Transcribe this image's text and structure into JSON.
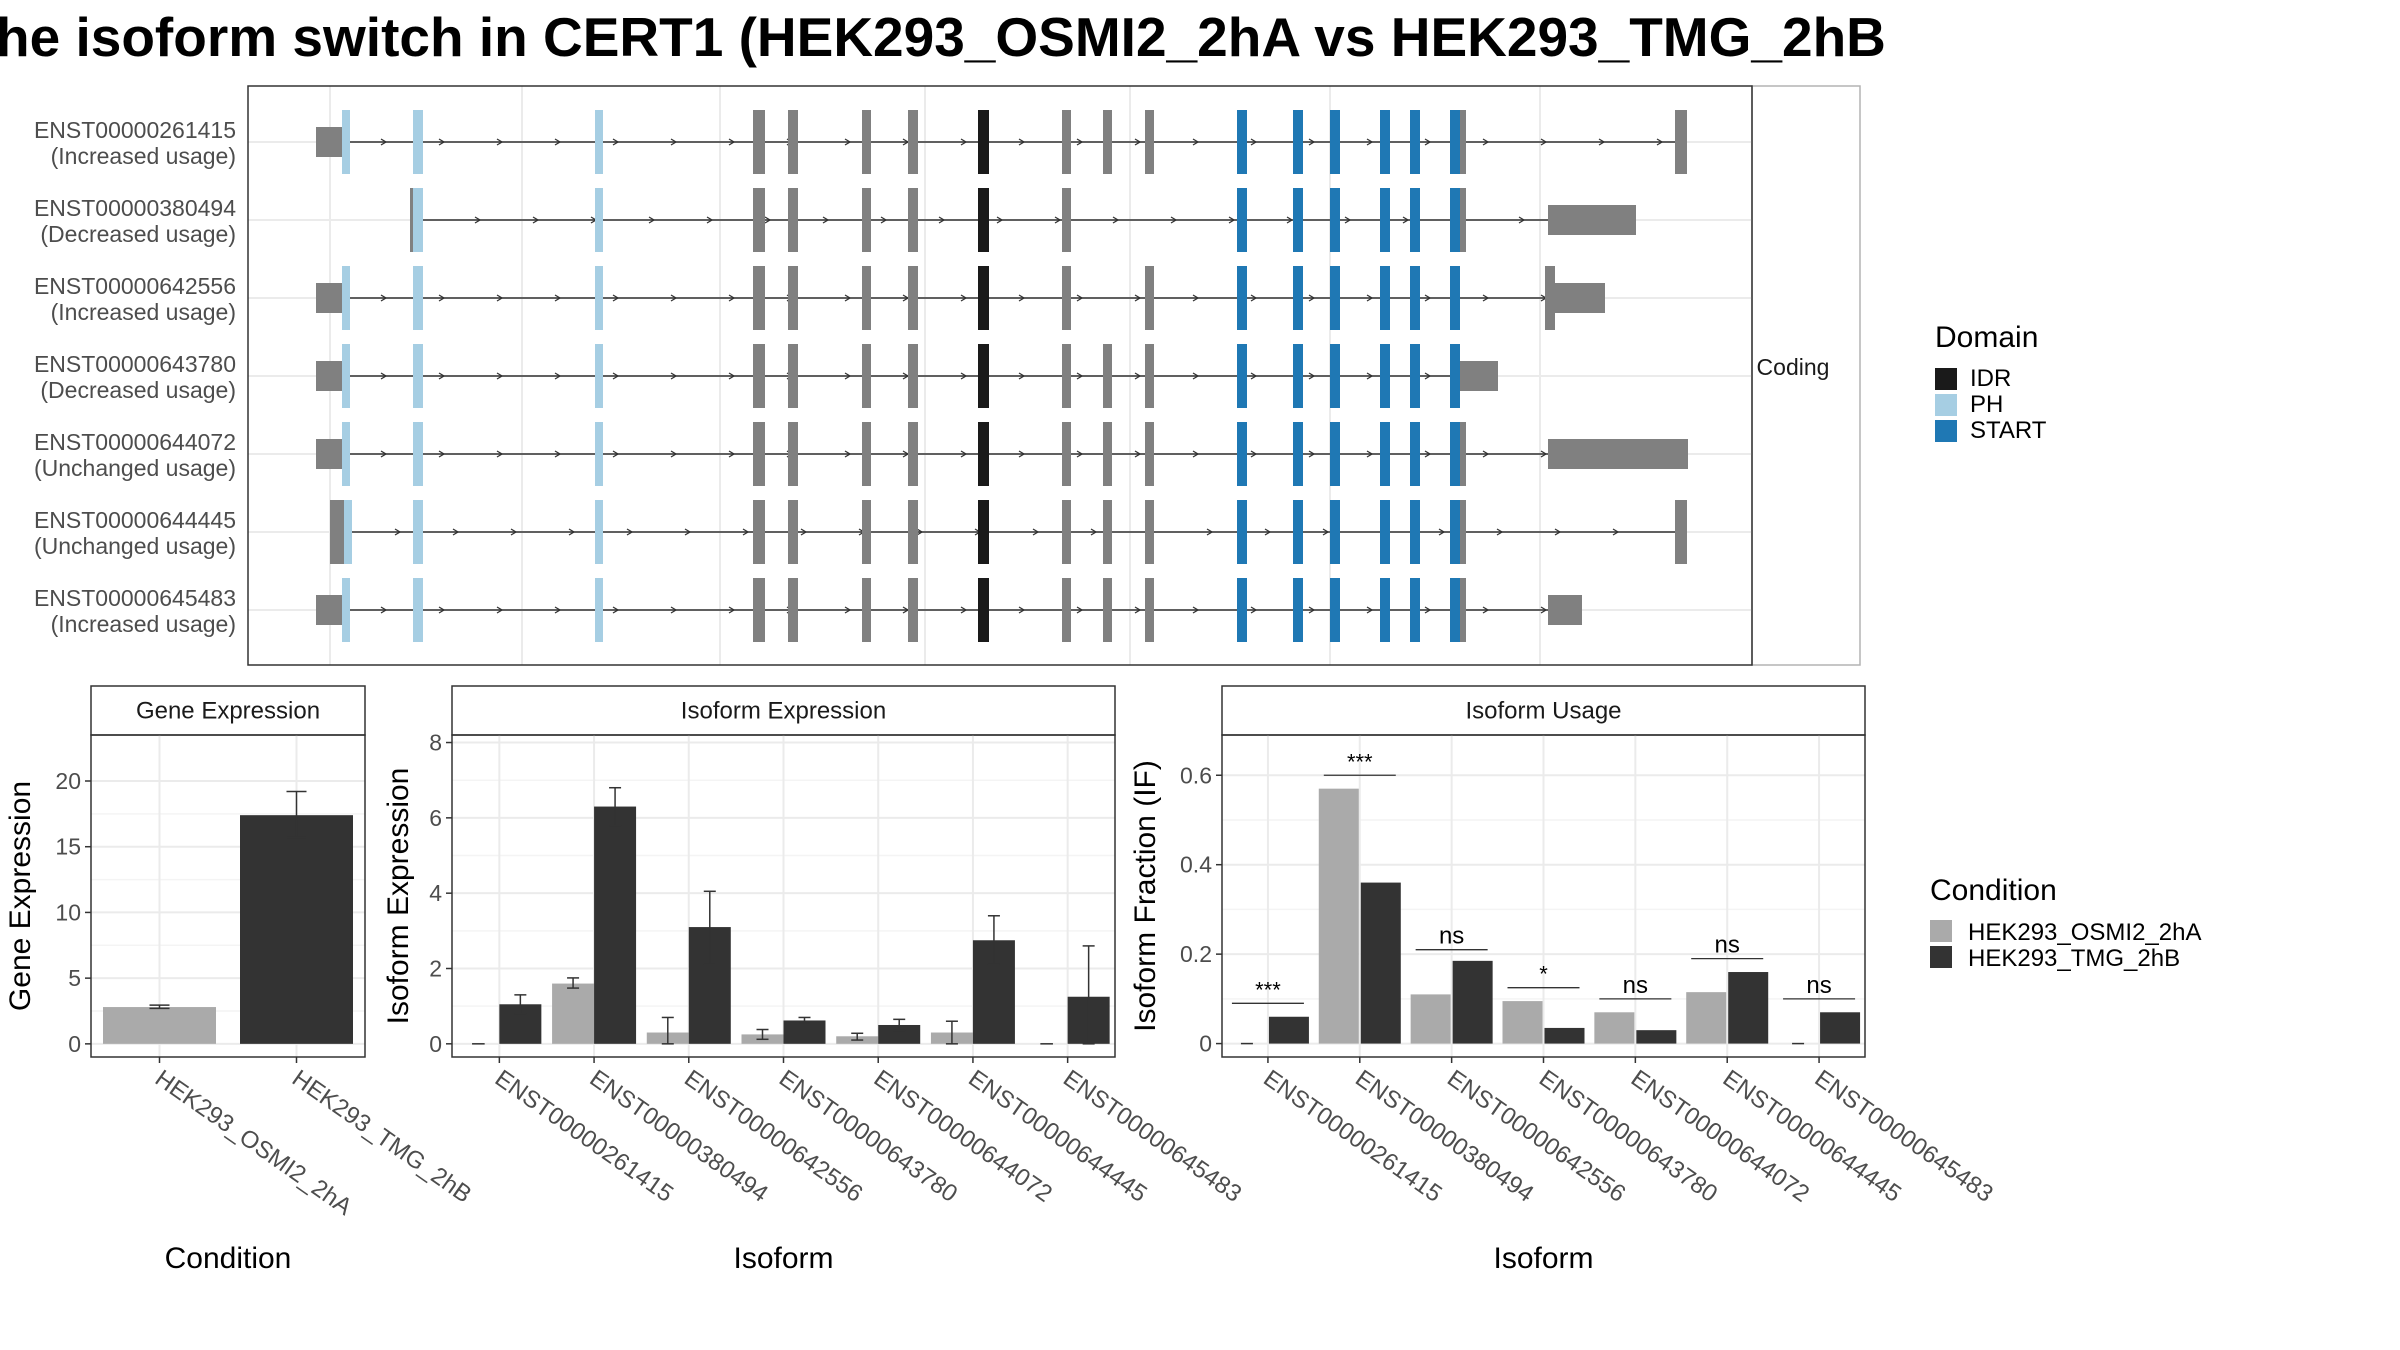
{
  "title": "he isoform switch in CERT1 (HEK293_OSMI2_2hA vs HEK293_TMG_2hB",
  "colors": {
    "exon": "#808080",
    "intron": "#333333",
    "IDR": "#1a1a1a",
    "PH": "#a6cee3",
    "START": "#1f78b4",
    "cond1": "#aaaaaa",
    "cond2": "#333333",
    "grid": "#ebebeb",
    "border": "#333333",
    "strip": "#ffffff"
  },
  "structure": {
    "strip_label": "Coding",
    "transcripts": [
      {
        "id": "ENST00000261415",
        "usage": "(Increased usage)"
      },
      {
        "id": "ENST00000380494",
        "usage": "(Decreased usage)"
      },
      {
        "id": "ENST00000642556",
        "usage": "(Increased usage)"
      },
      {
        "id": "ENST00000643780",
        "usage": "(Decreased usage)"
      },
      {
        "id": "ENST00000644072",
        "usage": "(Unchanged usage)"
      },
      {
        "id": "ENST00000644445",
        "usage": "(Unchanged usage)"
      },
      {
        "id": "ENST00000645483",
        "usage": "(Increased usage)"
      }
    ]
  },
  "domain_legend": {
    "title": "Domain",
    "items": [
      {
        "label": "IDR",
        "color": "#1a1a1a"
      },
      {
        "label": "PH",
        "color": "#a6cee3"
      },
      {
        "label": "START",
        "color": "#1f78b4"
      }
    ]
  },
  "condition_legend": {
    "title": "Condition",
    "items": [
      {
        "label": "HEK293_OSMI2_2hA",
        "color": "#aaaaaa"
      },
      {
        "label": "HEK293_TMG_2hB",
        "color": "#333333"
      }
    ]
  },
  "chart_data": [
    {
      "type": "bar",
      "title": "Gene Expression",
      "xlabel": "Condition",
      "ylabel": "Gene Expression",
      "ylim": [
        -1,
        23.5
      ],
      "yticks": [
        0,
        5,
        10,
        15,
        20
      ],
      "categories": [
        "HEK293_OSMI2_2hA",
        "HEK293_TMG_2hB"
      ],
      "values": [
        2.8,
        17.4
      ],
      "errors": [
        [
          2.7,
          2.95
        ],
        [
          15.7,
          19.2
        ]
      ]
    },
    {
      "type": "bar",
      "title": "Isoform Expression",
      "xlabel": "Isoform",
      "ylabel": "Isoform Expression",
      "ylim": [
        -0.35,
        8.2
      ],
      "yticks": [
        0,
        2,
        4,
        6,
        8
      ],
      "categories": [
        "ENST00000261415",
        "ENST00000380494",
        "ENST00000642556",
        "ENST00000643780",
        "ENST00000644072",
        "ENST00000644445",
        "ENST00000645483"
      ],
      "series": [
        {
          "name": "HEK293_OSMI2_2hA",
          "values": [
            0,
            1.6,
            0.3,
            0.25,
            0.2,
            0.3,
            0
          ],
          "errors": [
            [
              0,
              0
            ],
            [
              1.48,
              1.75
            ],
            [
              0.0,
              0.7
            ],
            [
              0.12,
              0.38
            ],
            [
              0.1,
              0.28
            ],
            [
              0.0,
              0.6
            ],
            [
              0,
              0
            ]
          ]
        },
        {
          "name": "HEK293_TMG_2hB",
          "values": [
            1.05,
            6.3,
            3.1,
            0.62,
            0.5,
            2.75,
            1.25
          ],
          "errors": [
            [
              0.8,
              1.3
            ],
            [
              5.8,
              6.8
            ],
            [
              2.1,
              4.05
            ],
            [
              0.55,
              0.7
            ],
            [
              0.35,
              0.65
            ],
            [
              2.1,
              3.4
            ],
            [
              0.0,
              2.6
            ]
          ]
        }
      ]
    },
    {
      "type": "bar",
      "title": "Isoform Usage",
      "xlabel": "Isoform",
      "ylabel": "Isoform Fraction (IF)",
      "ylim": [
        -0.03,
        0.69
      ],
      "yticks": [
        0.0,
        0.2,
        0.4,
        0.6
      ],
      "categories": [
        "ENST00000261415",
        "ENST00000380494",
        "ENST00000642556",
        "ENST00000643780",
        "ENST00000644072",
        "ENST00000644445",
        "ENST00000645483"
      ],
      "series": [
        {
          "name": "HEK293_OSMI2_2hA",
          "values": [
            0,
            0.57,
            0.11,
            0.095,
            0.07,
            0.115,
            0
          ]
        },
        {
          "name": "HEK293_TMG_2hB",
          "values": [
            0.06,
            0.36,
            0.185,
            0.035,
            0.03,
            0.16,
            0.07
          ]
        }
      ],
      "significance": [
        "***",
        "***",
        "ns",
        "*",
        "ns",
        "ns",
        "ns"
      ],
      "significance_y": [
        0.09,
        0.6,
        0.21,
        0.125,
        0.1,
        0.19,
        0.1
      ]
    }
  ]
}
